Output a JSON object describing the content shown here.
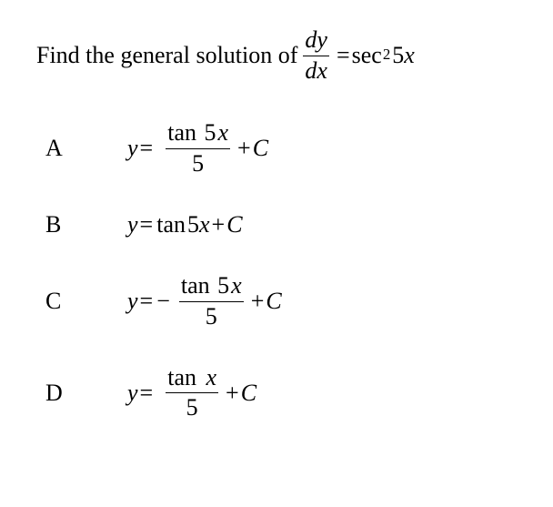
{
  "colors": {
    "background": "#ffffff",
    "text": "#000000",
    "rule": "#000000"
  },
  "typography": {
    "font_family": "Times New Roman",
    "base_fontsize_pt": 20
  },
  "question": {
    "lead_text": "Find the general solution of ",
    "derivative": {
      "num": "dy",
      "den": "dx"
    },
    "equals": "=",
    "rhs_func": "sec",
    "rhs_exp": "2",
    "rhs_arg_coeff": "5",
    "rhs_arg_var": "x"
  },
  "options": [
    {
      "letter": "A",
      "type": "fraction",
      "y": "y",
      "eq": "=",
      "sign": "",
      "num_func": "tan",
      "num_coeff": "5",
      "num_var": "x",
      "den": "5",
      "tail": "+",
      "const": "C"
    },
    {
      "letter": "B",
      "type": "inline",
      "y": "y",
      "eq": "=",
      "func": "tan",
      "coeff": "5",
      "var": "x",
      "tail": "+",
      "const": "C"
    },
    {
      "letter": "C",
      "type": "fraction",
      "y": "y",
      "eq": "=",
      "sign": "−",
      "num_func": "tan",
      "num_coeff": "5",
      "num_var": "x",
      "den": "5",
      "tail": "+",
      "const": "C"
    },
    {
      "letter": "D",
      "type": "fraction",
      "y": "y",
      "eq": "=",
      "sign": "",
      "num_func": "tan",
      "num_coeff": "",
      "num_var": "x",
      "den": "5",
      "tail": "+",
      "const": "C"
    }
  ]
}
